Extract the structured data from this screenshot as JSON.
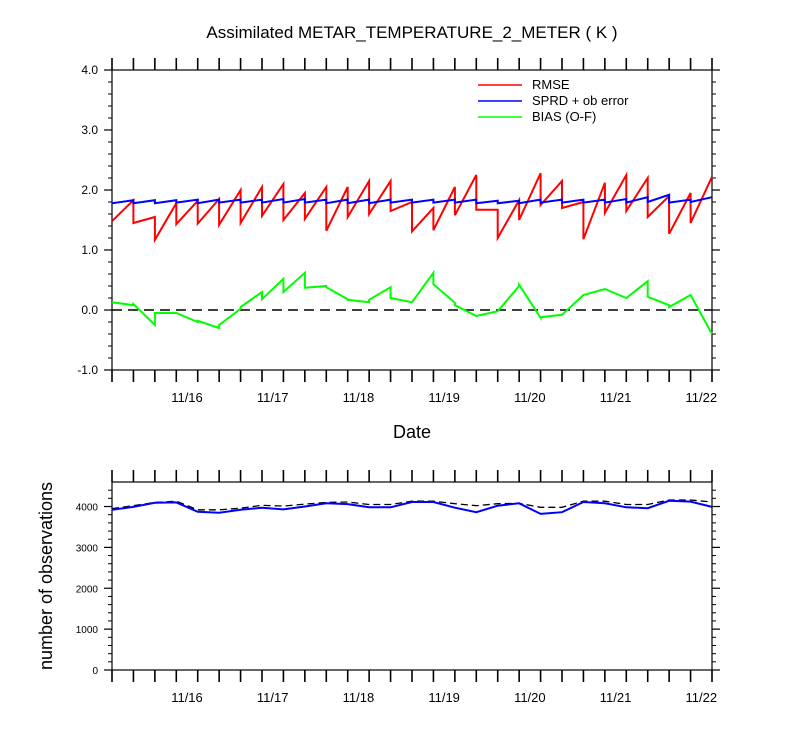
{
  "chart_data": [
    {
      "type": "line",
      "title": "Assimilated METAR_TEMPERATURE_2_METER ( K )",
      "xlabel": "Date",
      "ylabel": "",
      "ylim": [
        -1.0,
        4.0
      ],
      "yticks": [
        "-1.0",
        "0.0",
        "1.0",
        "2.0",
        "3.0",
        "4.0"
      ],
      "xlim": [
        0,
        28
      ],
      "x_tick_labels": [
        {
          "x": 3.5,
          "label": "11/16"
        },
        {
          "x": 7.5,
          "label": "11/17"
        },
        {
          "x": 11.5,
          "label": "11/18"
        },
        {
          "x": 15.5,
          "label": "11/19"
        },
        {
          "x": 19.5,
          "label": "11/20"
        },
        {
          "x": 23.5,
          "label": "11/21"
        },
        {
          "x": 27.5,
          "label": "11/22"
        }
      ],
      "legend_position": "top-right",
      "grid": false,
      "zero_line": true,
      "colors": {
        "RMSE": "#ff0000",
        "SPRD + ob error": "#0000ff",
        "BIAS (O-F)": "#00ff00"
      },
      "series": [
        {
          "name": "RMSE",
          "color": "#ff0000",
          "x": [
            0,
            1,
            1,
            2,
            2,
            3,
            3,
            4,
            4,
            5,
            5,
            6,
            6,
            7,
            7,
            8,
            8,
            9,
            9,
            10,
            10,
            11,
            11,
            12,
            12,
            13,
            13,
            14,
            14,
            15,
            15,
            16,
            16,
            17,
            17,
            18,
            18,
            19,
            19,
            20,
            20,
            21,
            21,
            22,
            22,
            23,
            23,
            24,
            24,
            25,
            25,
            26,
            26,
            27,
            27,
            28
          ],
          "values": [
            1.48,
            1.83,
            1.45,
            1.55,
            1.17,
            1.78,
            1.43,
            1.82,
            1.44,
            1.85,
            1.42,
            2.0,
            1.45,
            2.05,
            1.57,
            2.1,
            1.5,
            1.95,
            1.52,
            2.05,
            1.32,
            2.05,
            1.55,
            2.15,
            1.6,
            2.15,
            1.65,
            1.8,
            1.31,
            1.7,
            1.33,
            2.05,
            1.58,
            2.25,
            1.67,
            1.67,
            1.2,
            1.83,
            1.5,
            2.28,
            1.75,
            2.15,
            1.7,
            1.8,
            1.18,
            2.12,
            1.62,
            2.25,
            1.65,
            2.2,
            1.55,
            1.9,
            1.27,
            1.95,
            1.45,
            2.22
          ]
        },
        {
          "name": "SPRD + ob error",
          "color": "#0000ff",
          "x": [
            0,
            1,
            1,
            2,
            2,
            3,
            3,
            4,
            4,
            5,
            5,
            6,
            6,
            7,
            7,
            8,
            8,
            9,
            9,
            10,
            10,
            11,
            11,
            12,
            12,
            13,
            13,
            14,
            14,
            15,
            15,
            16,
            16,
            17,
            17,
            18,
            18,
            19,
            19,
            20,
            20,
            21,
            21,
            22,
            22,
            23,
            23,
            24,
            24,
            25,
            25,
            26,
            26,
            27,
            27,
            28
          ],
          "values": [
            1.78,
            1.83,
            1.78,
            1.83,
            1.78,
            1.83,
            1.79,
            1.84,
            1.78,
            1.84,
            1.79,
            1.84,
            1.79,
            1.84,
            1.79,
            1.85,
            1.79,
            1.85,
            1.79,
            1.84,
            1.78,
            1.84,
            1.78,
            1.84,
            1.78,
            1.84,
            1.79,
            1.84,
            1.79,
            1.84,
            1.79,
            1.84,
            1.79,
            1.84,
            1.78,
            1.82,
            1.78,
            1.82,
            1.78,
            1.84,
            1.79,
            1.84,
            1.79,
            1.84,
            1.79,
            1.84,
            1.79,
            1.85,
            1.79,
            1.88,
            1.8,
            1.92,
            1.79,
            1.84,
            1.8,
            1.88
          ]
        },
        {
          "name": "BIAS (O-F)",
          "color": "#00ff00",
          "x": [
            0,
            1,
            1,
            2,
            2,
            3,
            3,
            4,
            4,
            5,
            5,
            6,
            6,
            7,
            7,
            8,
            8,
            9,
            9,
            10,
            10,
            11,
            11,
            12,
            12,
            13,
            13,
            14,
            14,
            15,
            15,
            16,
            16,
            17,
            17,
            18,
            18,
            19,
            19,
            20,
            20,
            21,
            21,
            22,
            22,
            23,
            23,
            24,
            24,
            25,
            25,
            26,
            26,
            27,
            27,
            28
          ],
          "values": [
            0.13,
            0.08,
            0.1,
            -0.25,
            -0.05,
            -0.05,
            -0.05,
            -0.2,
            -0.18,
            -0.3,
            -0.25,
            0.02,
            0.05,
            0.3,
            0.18,
            0.52,
            0.3,
            0.62,
            0.37,
            0.4,
            0.38,
            0.18,
            0.17,
            0.13,
            0.17,
            0.38,
            0.2,
            0.13,
            0.13,
            0.62,
            0.43,
            0.12,
            0.08,
            -0.1,
            -0.1,
            -0.02,
            -0.02,
            0.4,
            0.42,
            -0.13,
            -0.12,
            -0.08,
            -0.08,
            0.25,
            0.25,
            0.35,
            0.35,
            0.2,
            0.2,
            0.48,
            0.22,
            0.08,
            0.05,
            0.25,
            0.25,
            -0.4
          ]
        }
      ]
    },
    {
      "type": "line",
      "title": "",
      "xlabel": "",
      "ylabel": "number of observations",
      "ylim": [
        0,
        4600
      ],
      "yticks": [
        "0",
        "1000",
        "2000",
        "3000",
        "4000"
      ],
      "xlim": [
        0,
        28
      ],
      "x_tick_labels": [
        {
          "x": 3.5,
          "label": "11/16"
        },
        {
          "x": 7.5,
          "label": "11/17"
        },
        {
          "x": 11.5,
          "label": "11/18"
        },
        {
          "x": 15.5,
          "label": "11/19"
        },
        {
          "x": 19.5,
          "label": "11/20"
        },
        {
          "x": 23.5,
          "label": "11/21"
        },
        {
          "x": 27.5,
          "label": "11/22"
        }
      ],
      "grid": false,
      "series": [
        {
          "style": "dashed",
          "color": "#000000",
          "x": [
            0,
            1,
            2,
            3,
            4,
            5,
            6,
            7,
            8,
            9,
            10,
            11,
            12,
            13,
            14,
            15,
            16,
            17,
            18,
            19,
            20,
            21,
            22,
            23,
            24,
            25,
            26,
            27,
            28
          ],
          "values": [
            3950,
            4020,
            4100,
            4130,
            3920,
            3920,
            3960,
            4030,
            4010,
            4060,
            4100,
            4110,
            4050,
            4050,
            4130,
            4130,
            4070,
            4020,
            4070,
            4080,
            3980,
            3980,
            4130,
            4130,
            4050,
            4050,
            4160,
            4160,
            4110
          ]
        },
        {
          "style": "solid",
          "color": "#0000ff",
          "x": [
            0,
            1,
            2,
            3,
            4,
            5,
            6,
            7,
            8,
            9,
            10,
            11,
            12,
            13,
            14,
            15,
            16,
            17,
            18,
            19,
            20,
            21,
            22,
            23,
            24,
            25,
            26,
            27,
            28
          ],
          "values": [
            3920,
            3990,
            4090,
            4100,
            3870,
            3850,
            3920,
            3970,
            3930,
            4000,
            4080,
            4060,
            3980,
            3980,
            4110,
            4110,
            3970,
            3860,
            4020,
            4080,
            3820,
            3860,
            4110,
            4080,
            3980,
            3960,
            4140,
            4120,
            3990
          ]
        }
      ]
    }
  ]
}
